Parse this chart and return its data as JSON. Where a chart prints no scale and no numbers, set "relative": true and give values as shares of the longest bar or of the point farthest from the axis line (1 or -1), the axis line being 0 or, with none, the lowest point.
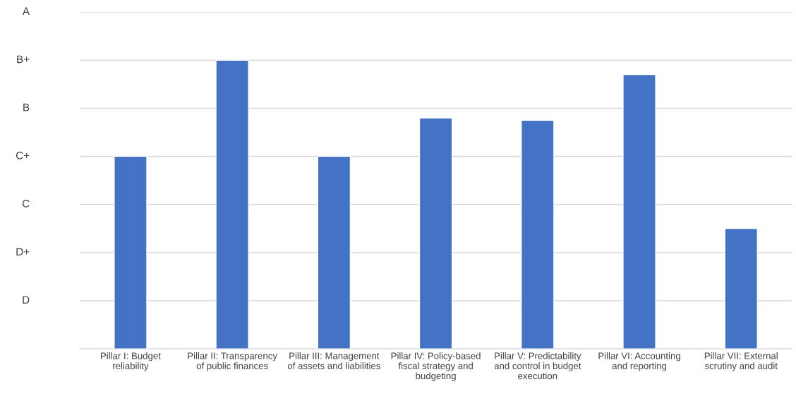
{
  "chart_data": {
    "type": "bar",
    "categories": [
      "Pillar I: Budget\nreliability",
      "Pillar II: Transparency\nof public finances",
      "Pillar III: Management\nof assets and liabilities",
      "Pillar IV: Policy-based\nfiscal strategy and\nbudgeting",
      "Pillar V: Predictability\nand control in budget\nexecution",
      "Pillar VI: Accounting\nand reporting",
      "Pillar VII: External\nscrutiny and audit"
    ],
    "values": [
      0.667,
      1,
      0.667,
      0.8,
      0.792,
      0.95,
      0.417
    ],
    "color": "#4472c4",
    "relative": true,
    "annotations": [
      "A",
      "B+",
      "B",
      "C+",
      "C",
      "D+",
      "D"
    ],
    "grid": "y"
  }
}
